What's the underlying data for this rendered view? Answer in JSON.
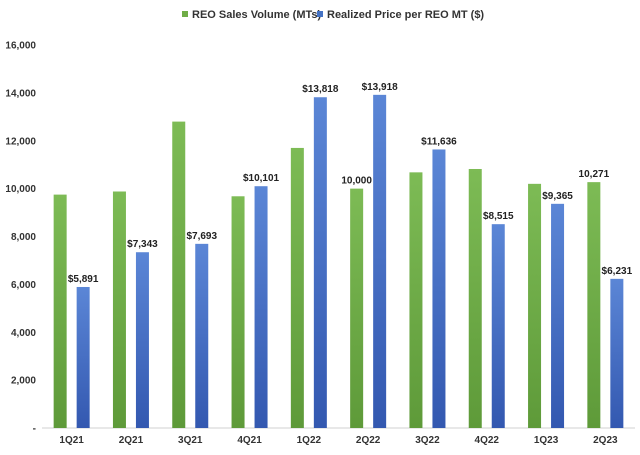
{
  "chart_data": {
    "type": "bar",
    "categories": [
      "1Q21",
      "2Q21",
      "3Q21",
      "4Q21",
      "1Q22",
      "2Q22",
      "3Q22",
      "4Q22",
      "1Q23",
      "2Q23"
    ],
    "series": [
      {
        "name": "REO Sales Volume (MTs)",
        "color": "#70AD47",
        "values": [
          9750,
          9880,
          12800,
          9680,
          11700,
          10000,
          10680,
          10820,
          10200,
          10271
        ],
        "labels": [
          "",
          "",
          "",
          "",
          "",
          "10,000",
          "",
          "",
          "",
          "10,271"
        ]
      },
      {
        "name": "Realized Price per REO MT ($)",
        "color": "#4472C4",
        "values": [
          5891,
          7343,
          7693,
          10101,
          13818,
          13918,
          11636,
          8515,
          9365,
          6231
        ],
        "labels": [
          "$5,891",
          "$7,343",
          "$7,693",
          "$10,101",
          "$13,818",
          "$13,918",
          "$11,636",
          "$8,515",
          "$9,365",
          "$6,231"
        ]
      }
    ],
    "ylim": [
      0,
      16000
    ],
    "yticks": [
      0,
      2000,
      4000,
      6000,
      8000,
      10000,
      12000,
      14000,
      16000
    ],
    "ytick_labels": [
      "-",
      "2,000",
      "4,000",
      "6,000",
      "8,000",
      "10,000",
      "12,000",
      "14,000",
      "16,000"
    ],
    "grid": false,
    "legend_position": "top-center"
  }
}
